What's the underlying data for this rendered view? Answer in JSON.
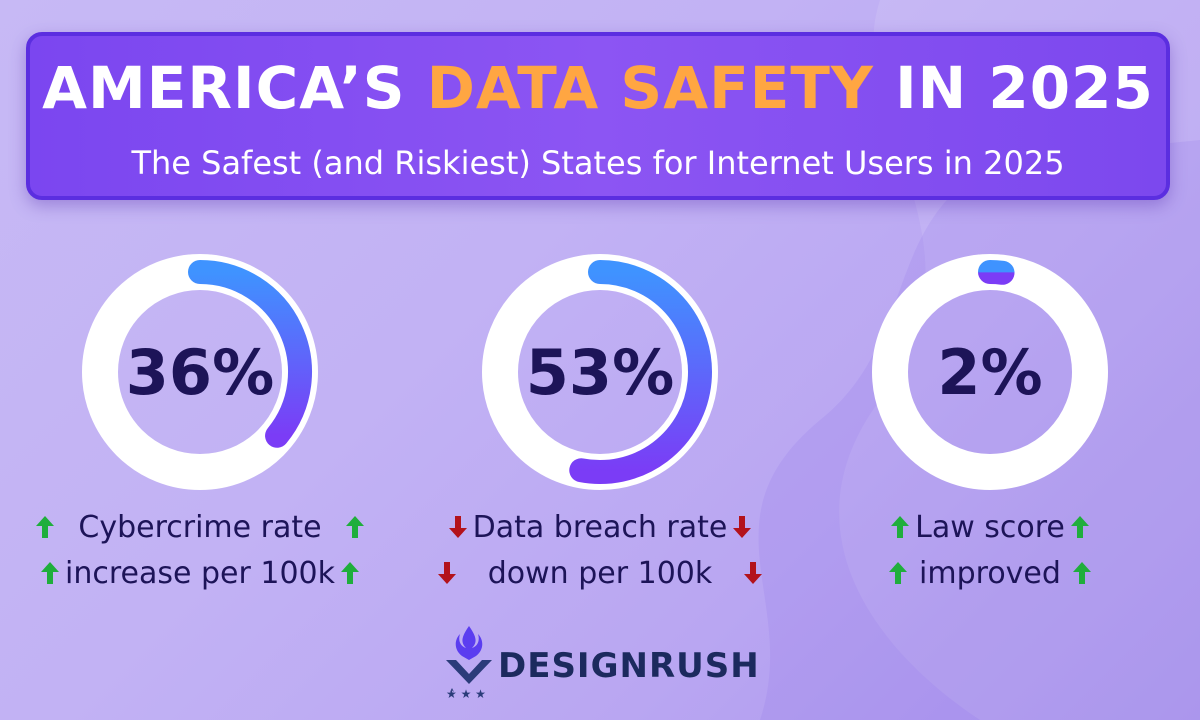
{
  "header": {
    "title_part1": "AMERICA’S ",
    "title_highlight": "DATA SAFETY",
    "title_part2": " IN 2025",
    "subtitle": "The Safest (and Riskiest) States for Internet Users in 2025"
  },
  "stats": [
    {
      "value": 36,
      "label": "36%",
      "line1": "Cybercrime rate",
      "line2": "increase per 100k",
      "trend": "up"
    },
    {
      "value": 53,
      "label": "53%",
      "line1": "Data breach rate",
      "line2": "down per 100k",
      "trend": "down"
    },
    {
      "value": 2,
      "label": "2%",
      "line1": "Law score",
      "line2": "improved",
      "trend": "up"
    }
  ],
  "logo": {
    "text": "DESIGNRUSH",
    "icon": "designrush-logo-icon"
  },
  "colors": {
    "title_highlight": "#ffa642",
    "arrow_up": "#1fae3c",
    "arrow_down": "#b3121b",
    "ring_start": "#3f93ff",
    "ring_end": "#7b3cf6",
    "text_dark": "#1d1458"
  }
}
